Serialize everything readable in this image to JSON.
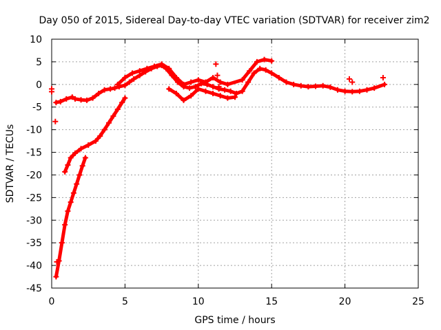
{
  "chart_data": {
    "type": "scatter",
    "title": "Day 050 of 2015, Sidereal Day-to-day VTEC variation (SDTVAR) for receiver zim2",
    "xlabel": "GPS time / hours",
    "ylabel": "SDTVAR / TECUs",
    "xlim": [
      0,
      25
    ],
    "ylim": [
      -45,
      10
    ],
    "xticks": [
      0,
      5,
      10,
      15,
      20,
      25
    ],
    "yticks": [
      10,
      5,
      0,
      -5,
      -10,
      -15,
      -20,
      -25,
      -30,
      -35,
      -40,
      -45
    ],
    "grid": true,
    "legend": "none",
    "marker": "+",
    "series": [
      {
        "name": "main-track",
        "color": "#ff0000",
        "x": [
          0.3,
          0.6,
          1.0,
          1.4,
          1.6,
          2.0,
          2.4,
          2.8,
          3.2,
          3.6,
          4.0,
          4.3,
          4.6,
          5.0,
          5.3,
          5.6,
          6.0,
          6.4,
          6.8,
          7.2,
          7.5,
          7.8,
          8.2,
          8.6,
          9.0,
          9.4,
          9.8,
          10.2,
          10.6,
          11.0,
          11.4,
          11.8,
          12.2,
          12.6,
          13.0,
          13.4,
          13.8,
          14.2,
          14.6,
          15.0,
          15.5,
          16.0,
          16.5,
          17.0,
          17.5,
          18.0,
          18.5,
          19.0,
          19.5,
          20.0,
          20.5,
          21.0,
          21.5,
          22.0,
          22.7
        ],
        "y": [
          -4.0,
          -3.8,
          -3.2,
          -2.8,
          -3.2,
          -3.4,
          -3.5,
          -3.0,
          -2.0,
          -1.2,
          -1.0,
          -0.8,
          -0.5,
          -0.2,
          0.5,
          1.2,
          2.0,
          2.8,
          3.5,
          4.0,
          4.2,
          3.5,
          2.0,
          0.5,
          -0.5,
          -0.8,
          -0.5,
          0.2,
          0.0,
          -0.5,
          -1.0,
          -1.2,
          -1.5,
          -2.0,
          -1.5,
          0.5,
          2.5,
          3.5,
          3.2,
          2.5,
          1.5,
          0.5,
          0.0,
          -0.3,
          -0.5,
          -0.4,
          -0.3,
          -0.6,
          -1.2,
          -1.5,
          -1.6,
          -1.5,
          -1.2,
          -0.8,
          0.0
        ]
      },
      {
        "name": "morning-recovery",
        "color": "#ff0000",
        "x": [
          0.9,
          1.1,
          1.3,
          1.6,
          2.0,
          2.5,
          3.0,
          3.3,
          3.6,
          3.9,
          4.2,
          4.5,
          4.8,
          5.0
        ],
        "y": [
          -19.3,
          -17.8,
          -16.2,
          -15.2,
          -14.2,
          -13.4,
          -12.5,
          -11.4,
          -10.0,
          -8.5,
          -7.0,
          -5.5,
          -4.0,
          -3.0
        ]
      },
      {
        "name": "deep-depletion",
        "color": "#ff0000",
        "x": [
          0.3,
          0.5,
          0.7,
          0.9,
          1.1,
          1.3,
          1.5,
          1.7,
          1.9,
          2.1,
          2.3
        ],
        "y": [
          -42.5,
          -39.0,
          -35.0,
          -31.0,
          -28.0,
          -26.0,
          -24.0,
          -22.0,
          -20.0,
          -18.0,
          -16.2
        ]
      },
      {
        "name": "upper-band",
        "color": "#ff0000",
        "x": [
          4.5,
          5.0,
          5.5,
          6.0,
          6.5,
          7.0,
          7.5,
          8.0,
          8.5,
          9.0,
          9.5,
          10.0,
          10.5,
          11.0,
          11.5,
          12.0,
          13.0,
          13.5,
          14.0,
          14.5,
          15.0
        ],
        "y": [
          0.0,
          1.5,
          2.5,
          3.0,
          3.5,
          4.0,
          4.5,
          3.5,
          1.5,
          0.0,
          0.5,
          1.0,
          0.5,
          1.5,
          0.5,
          0.0,
          1.0,
          3.0,
          5.0,
          5.5,
          5.2
        ]
      },
      {
        "name": "lower-band",
        "color": "#ff0000",
        "x": [
          8.0,
          8.5,
          9.0,
          9.5,
          10.0,
          10.5,
          11.0,
          11.5,
          12.0,
          12.5
        ],
        "y": [
          -1.0,
          -2.0,
          -3.5,
          -2.5,
          -1.0,
          -1.5,
          -2.0,
          -2.5,
          -3.0,
          -2.8
        ]
      },
      {
        "name": "spikes-and-gaps",
        "color": "#ff0000",
        "x": [
          0.0,
          0.0,
          0.25,
          0.35,
          11.2,
          11.3,
          11.4,
          20.3,
          20.5,
          22.6
        ],
        "y": [
          -1.0,
          -1.6,
          -8.2,
          -39.2,
          4.5,
          2.0,
          -0.5,
          1.2,
          0.5,
          1.5
        ]
      }
    ]
  }
}
